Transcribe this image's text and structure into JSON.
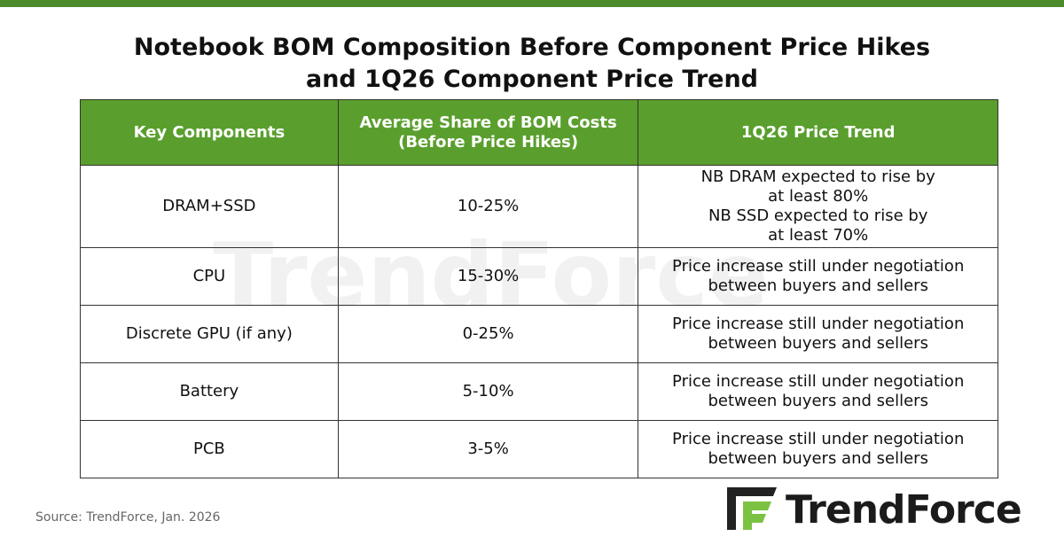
{
  "title": {
    "lines": [
      "Notebook BOM Composition Before Component Price Hikes",
      "and 1Q26 Component Price Trend"
    ]
  },
  "table": {
    "header": [
      [
        "Key Components"
      ],
      [
        "Average Share of BOM Costs",
        "(Before Price Hikes)"
      ],
      [
        "1Q26 Price Trend"
      ]
    ],
    "rows": [
      [
        [
          "DRAM+SSD"
        ],
        [
          "10-25%"
        ],
        [
          "NB DRAM expected to rise by",
          "at least 80%",
          "NB SSD expected to rise by",
          "at least 70%"
        ]
      ],
      [
        [
          "CPU"
        ],
        [
          "15-30%"
        ],
        [
          "Price increase still under negotiation",
          "between buyers and sellers"
        ]
      ],
      [
        [
          "Discrete GPU (if any)"
        ],
        [
          "0-25%"
        ],
        [
          "Price increase still under negotiation",
          "between buyers and sellers"
        ]
      ],
      [
        [
          "Battery"
        ],
        [
          "5-10%"
        ],
        [
          "Price increase still under negotiation",
          "between buyers and sellers"
        ]
      ],
      [
        [
          "PCB"
        ],
        [
          "3-5%"
        ],
        [
          "Price increase still under negotiation",
          "between buyers and sellers"
        ]
      ]
    ]
  },
  "watermark": "TrendForce",
  "source": "Source: TrendForce,  Jan. 2026",
  "logo": "TrendForce"
}
